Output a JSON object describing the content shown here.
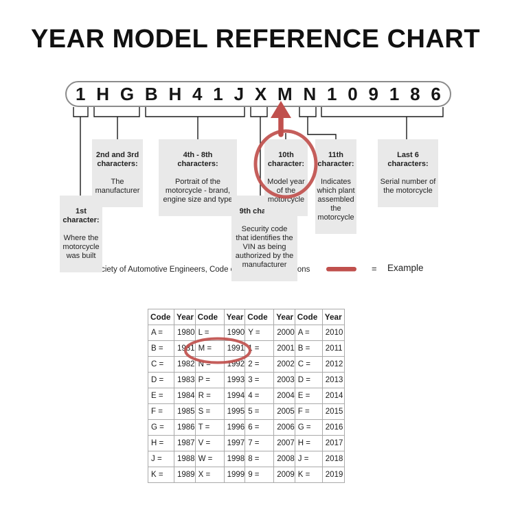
{
  "title": "YEAR MODEL REFERENCE CHART",
  "colors": {
    "accent_red": "#c0504d",
    "callout_bg": "#e9e9e9",
    "line": "#1a1a1a",
    "table_border": "#a9a9a9"
  },
  "vin": {
    "characters": [
      "1",
      "H",
      "G",
      "B",
      "H",
      "4",
      "1",
      "J",
      "X",
      "M",
      "N",
      "1",
      "0",
      "9",
      "1",
      "8",
      "6"
    ]
  },
  "callouts": {
    "first": {
      "heading": "1st\ncharacter:",
      "body": "Where the\nmotorcycle\nwas built"
    },
    "second_third": {
      "heading": "2nd and 3rd\ncharacters:",
      "body": "The\nmanufacturer"
    },
    "fourth_eighth": {
      "heading": "4th - 8th\ncharacters:",
      "body": "Portrait of the\nmotorcycle - brand,\nengine size and type"
    },
    "ninth": {
      "heading": "9th character:",
      "body": "Security code\nthat identifies the\nVIN as being\nauthorized by the\nmanufacturer"
    },
    "tenth": {
      "heading": "10th\ncharacter:",
      "body": "Model year\nof the\nmotorcycle"
    },
    "eleventh": {
      "heading": "11th\ncharacter:",
      "body": "Indicates\nwhich plant\nassembled\nthe\nmotorcycle"
    },
    "last_six": {
      "heading": "Last 6\ncharacters:",
      "body": "Serial number of\nthe motorcycle"
    }
  },
  "legend": {
    "source": "Source:  Society of Automotive Engineers, Code of Federal Regulations",
    "equals": "=",
    "example": "Example"
  },
  "table": {
    "headers": [
      "Code",
      "Year",
      "Code",
      "Year",
      "Code",
      "Year",
      "Code",
      "Year"
    ],
    "rows": [
      [
        "A =",
        "1980",
        "L =",
        "1990",
        "Y =",
        "2000",
        "A =",
        "2010"
      ],
      [
        "B =",
        "1981",
        "M =",
        "1991",
        "1 =",
        "2001",
        "B =",
        "2011"
      ],
      [
        "C =",
        "1982",
        "N =",
        "1992",
        "2 =",
        "2002",
        "C =",
        "2012"
      ],
      [
        "D =",
        "1983",
        "P =",
        "1993",
        "3 =",
        "2003",
        "D =",
        "2013"
      ],
      [
        "E =",
        "1984",
        "R =",
        "1994",
        "4 =",
        "2004",
        "E =",
        "2014"
      ],
      [
        "F =",
        "1985",
        "S =",
        "1995",
        "5 =",
        "2005",
        "F =",
        "2015"
      ],
      [
        "G =",
        "1986",
        "T =",
        "1996",
        "6 =",
        "2006",
        "G =",
        "2016"
      ],
      [
        "H =",
        "1987",
        "V =",
        "1997",
        "7 =",
        "2007",
        "H =",
        "2017"
      ],
      [
        "J =",
        "1988",
        "W =",
        "1998",
        "8 =",
        "2008",
        "J =",
        "2018"
      ],
      [
        "K =",
        "1989",
        "X =",
        "1999",
        "9 =",
        "2009",
        "K =",
        "2019"
      ]
    ]
  }
}
